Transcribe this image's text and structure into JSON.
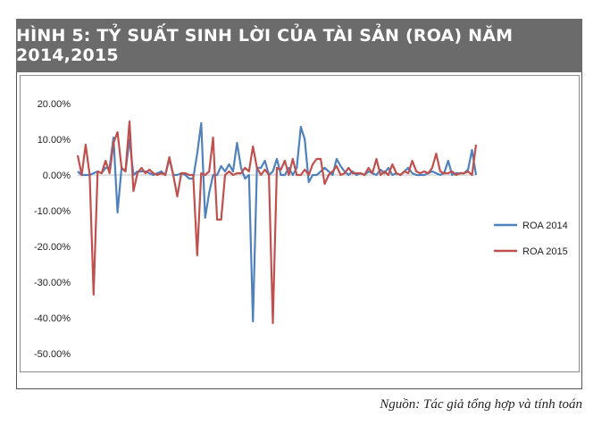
{
  "header": {
    "title": "HÌNH 5: TỶ SUẤT SINH LỜI CỦA TÀI SẢN (ROA) NĂM 2014,2015"
  },
  "source_note": "Nguồn: Tác giả tổng hợp và tính toán",
  "colors": {
    "roa_2014": "#4f81bd",
    "roa_2015": "#c0504d",
    "title_bg": "#6b6b6b"
  },
  "chart_data": {
    "type": "line",
    "title": "",
    "xlabel": "",
    "ylabel": "",
    "ylim": [
      -0.5,
      0.2
    ],
    "y_ticks": [
      0.2,
      0.1,
      0.0,
      -0.1,
      -0.2,
      -0.3,
      -0.4,
      -0.5
    ],
    "y_tick_labels": [
      "20.00%",
      "10.00%",
      "0.00%",
      "-10.00%",
      "-20.00%",
      "-30.00%",
      "-40.00%",
      "-50.00%"
    ],
    "x_ticks_shown": false,
    "grid": false,
    "legend_position": "right",
    "x": [
      1,
      2,
      3,
      4,
      5,
      6,
      7,
      8,
      9,
      10,
      11,
      12,
      13,
      14,
      15,
      16,
      17,
      18,
      19,
      20,
      21,
      22,
      23,
      24,
      25,
      26,
      27,
      28,
      29,
      30,
      31,
      32,
      33,
      34,
      35,
      36,
      37,
      38,
      39,
      40,
      41,
      42,
      43,
      44,
      45,
      46,
      47,
      48,
      49,
      50,
      51,
      52,
      53,
      54,
      55,
      56,
      57,
      58,
      59,
      60,
      61,
      62,
      63,
      64,
      65,
      66,
      67,
      68,
      69,
      70,
      71,
      72,
      73,
      74,
      75,
      76,
      77,
      78,
      79,
      80,
      81,
      82,
      83,
      84,
      85,
      86,
      87,
      88,
      89,
      90,
      91,
      92,
      93,
      94,
      95,
      96,
      97,
      98,
      99,
      100,
      101
    ],
    "series": [
      {
        "name": "ROA 2014",
        "values": [
          0.01,
          0.0,
          0.0,
          0.0,
          0.005,
          0.01,
          0.005,
          0.02,
          0.02,
          0.105,
          -0.105,
          0.02,
          0.01,
          0.1,
          0.0,
          0.01,
          0.01,
          0.01,
          0.005,
          0.0,
          0.005,
          0.01,
          0.0,
          0.045,
          0.0,
          0.0,
          0.005,
          0.0,
          -0.01,
          -0.01,
          0.06,
          0.145,
          -0.12,
          -0.05,
          0.0,
          0.0,
          0.025,
          0.01,
          0.03,
          0.01,
          0.09,
          0.02,
          -0.01,
          0.0,
          -0.41,
          0.02,
          0.02,
          0.04,
          0.0,
          0.01,
          0.045,
          0.0,
          0.0,
          0.02,
          0.0,
          0.02,
          0.135,
          0.1,
          -0.02,
          0.0,
          0.0,
          0.01,
          0.02,
          0.01,
          0.0,
          0.045,
          0.025,
          0.01,
          0.0,
          0.01,
          0.0,
          0.005,
          0.0,
          0.01,
          0.005,
          0.0,
          0.015,
          0.005,
          0.02,
          0.0,
          0.005,
          0.0,
          0.01,
          0.02,
          0.005,
          0.0,
          0.0,
          0.0,
          0.005,
          0.01,
          0.005,
          0.0,
          0.005,
          0.04,
          0.0,
          0.005,
          0.005,
          0.005,
          0.015,
          0.07,
          0.0
        ]
      },
      {
        "name": "ROA 2015",
        "values": [
          0.055,
          0.0,
          0.085,
          0.0,
          -0.335,
          0.01,
          0.005,
          0.04,
          0.005,
          0.09,
          0.12,
          0.02,
          0.01,
          0.15,
          -0.045,
          0.005,
          0.02,
          0.005,
          0.015,
          0.005,
          0.0,
          0.005,
          0.0,
          0.05,
          0.0,
          -0.06,
          0.005,
          0.005,
          0.0,
          0.0,
          -0.225,
          0.005,
          0.0,
          0.01,
          0.105,
          -0.125,
          -0.125,
          0.0,
          0.01,
          0.0,
          0.005,
          0.005,
          0.02,
          0.01,
          0.08,
          0.02,
          0.0,
          0.015,
          0.0,
          -0.415,
          0.02,
          0.015,
          0.04,
          0.0,
          0.045,
          0.0,
          0.0,
          0.015,
          0.0,
          0.03,
          0.045,
          0.045,
          -0.025,
          0.0,
          0.01,
          0.025,
          0.0,
          0.005,
          0.02,
          0.005,
          0.005,
          0.005,
          0.0,
          0.02,
          0.005,
          0.045,
          0.0,
          0.01,
          0.0,
          0.03,
          0.005,
          0.0,
          0.01,
          0.005,
          0.04,
          0.01,
          0.005,
          0.01,
          0.005,
          0.02,
          0.06,
          0.01,
          0.005,
          0.005,
          0.01,
          0.0,
          0.005,
          0.005,
          0.01,
          0.0,
          0.085
        ]
      }
    ]
  }
}
